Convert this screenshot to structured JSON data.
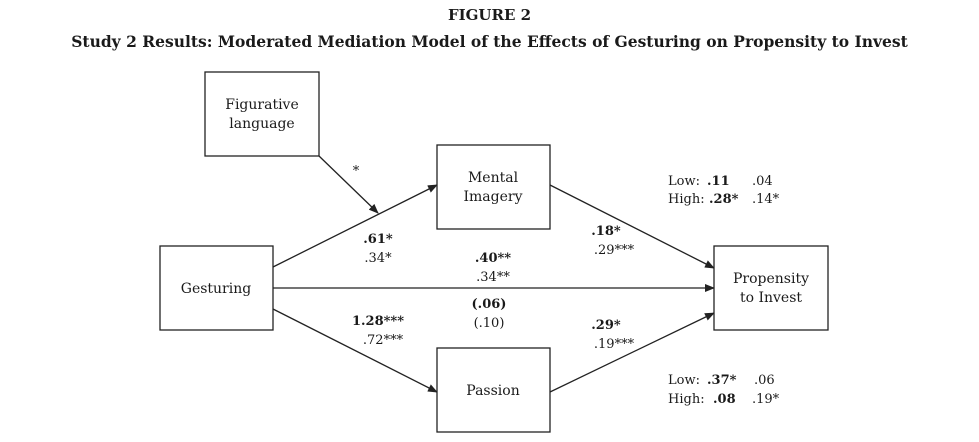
{
  "figure": {
    "label": "FIGURE 2",
    "title": "Study 2 Results: Moderated Mediation Model of the Effects of Gesturing on Propensity to Invest"
  },
  "nodes": {
    "figurative": {
      "line1": "Figurative",
      "line2": "language"
    },
    "mental": {
      "line1": "Mental",
      "line2": "Imagery"
    },
    "gesturing": {
      "line1": "Gesturing"
    },
    "passion": {
      "line1": "Passion"
    },
    "propensity": {
      "line1": "Propensity",
      "line2": "to Invest"
    }
  },
  "paths": {
    "moderation": {
      "label": "*"
    },
    "gesturing_to_mental": {
      "top": ".61*",
      "bottom": ".34*"
    },
    "mental_to_propensity": {
      "top": ".18*",
      "bottom": ".29***"
    },
    "direct": {
      "top": ".40**",
      "mid": ".34**",
      "paren_bold": "(.06)",
      "paren": "(.10)"
    },
    "gesturing_to_passion": {
      "top": "1.28***",
      "bottom": ".72***"
    },
    "passion_to_propensity": {
      "top": ".29*",
      "bottom": ".19***"
    }
  },
  "conditional_effects": {
    "mental": {
      "low_label": "Low:",
      "low_bold": ".11",
      "low_plain": ".04",
      "high_label": "High:",
      "high_bold": ".28*",
      "high_plain": ".14*"
    },
    "passion": {
      "low_label": "Low:",
      "low_bold": ".37*",
      "low_plain": ".06",
      "high_label": "High:",
      "high_bold": ".08",
      "high_plain": ".19*"
    }
  }
}
